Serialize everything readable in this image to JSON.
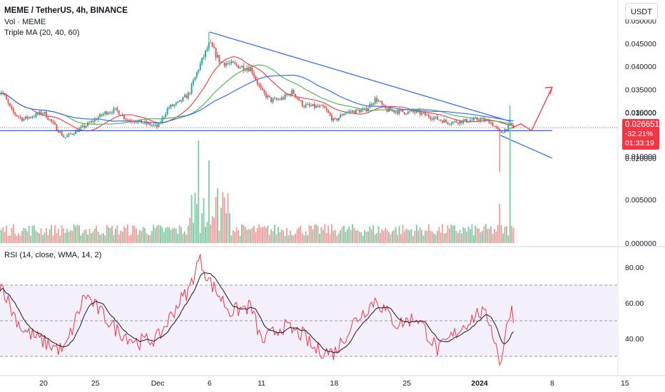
{
  "header": {
    "symbol_line": "MEME / TetherUS, 4h, BINANCE",
    "volume_line": "Vol · MEME",
    "ma_line": "Triple MA (20, 40, 60)",
    "currency": "USDT",
    "rsi_line": "RSI (14, close, WMA, 14, 2)"
  },
  "last_price": {
    "value": "0.026651",
    "change": "-32.21%",
    "countdown": "01:33:19"
  },
  "colors": {
    "up": "#26a69a",
    "down": "#ef5350",
    "vol_up": "#7ec9a2",
    "vol_down": "#f09a9a",
    "ma_fast": "#f23645",
    "ma_mid": "#4caf50",
    "ma_slow": "#2962ff",
    "trendline": "#2962ff",
    "projection": "#f23645",
    "rsi": "#f23645",
    "rsi_ma": "#131722",
    "rsi_band": "#f3effb"
  },
  "chart_data": [
    {
      "type": "candlestick",
      "title": "MEME / TetherUS, 4h, BINANCE",
      "x_ticks": [
        "20",
        "25",
        "Dec",
        "6",
        "11",
        "18",
        "25",
        "2024",
        "8",
        "15"
      ],
      "y_ticks": [
        "0.050000",
        "0.045000",
        "0.040000",
        "0.035000",
        "0.030000",
        "0.025000",
        "0.020000"
      ],
      "ylim": [
        0.016,
        0.051
      ],
      "anchors_close": [
        [
          "Nov 16",
          0.0345
        ],
        [
          "Nov 17",
          0.03
        ],
        [
          "Nov 18",
          0.0285
        ],
        [
          "Nov 20",
          0.03
        ],
        [
          "Nov 22",
          0.0245
        ],
        [
          "Nov 24",
          0.027
        ],
        [
          "Nov 26",
          0.03
        ],
        [
          "Nov 27",
          0.0305
        ],
        [
          "Nov 28",
          0.0285
        ],
        [
          "Nov 30",
          0.0275
        ],
        [
          "Dec 1",
          0.0268
        ],
        [
          "Dec 2",
          0.031
        ],
        [
          "Dec 3",
          0.032
        ],
        [
          "Dec 4",
          0.034
        ],
        [
          "Dec 5",
          0.04
        ],
        [
          "Dec 6",
          0.045
        ],
        [
          "Dec 7",
          0.041
        ],
        [
          "Dec 8",
          0.0405
        ],
        [
          "Dec 10",
          0.0395
        ],
        [
          "Dec 11",
          0.0345
        ],
        [
          "Dec 12",
          0.0325
        ],
        [
          "Dec 13",
          0.033
        ],
        [
          "Dec 14",
          0.0345
        ],
        [
          "Dec 15",
          0.0315
        ],
        [
          "Dec 17",
          0.031
        ],
        [
          "Dec 18",
          0.028
        ],
        [
          "Dec 19",
          0.03
        ],
        [
          "Dec 21",
          0.0305
        ],
        [
          "Dec 22",
          0.033
        ],
        [
          "Dec 23",
          0.0305
        ],
        [
          "Dec 25",
          0.03
        ],
        [
          "Dec 26",
          0.03
        ],
        [
          "Dec 28",
          0.0285
        ],
        [
          "Dec 29",
          0.0278
        ],
        [
          "Dec 31",
          0.0282
        ],
        [
          "Jan 1",
          0.0285
        ],
        [
          "Jan 2",
          0.028
        ],
        [
          "Jan 3",
          0.0255
        ],
        [
          "Jan 4",
          0.0272
        ],
        [
          "Jan 4b",
          0.0266
        ]
      ],
      "wick_extremes": {
        "high": 0.0475,
        "spike_high": 0.0315,
        "spike_low": 0.017
      },
      "resistance_line": {
        "from": [
          "Dec 6",
          0.0475
        ],
        "to": [
          "Jan 4",
          0.028
        ]
      },
      "support_line": {
        "level": 0.026,
        "from": "Nov 16",
        "to": "Jan 8"
      },
      "lower_line": {
        "from": [
          "Jan 3",
          0.025
        ],
        "to": [
          "Jan 8",
          0.02
        ]
      },
      "projection": [
        [
          "Jan 4",
          0.0265
        ],
        [
          "Jan 5",
          0.0275
        ],
        [
          "Jan 6",
          0.026
        ],
        [
          "Jan 8",
          0.0355
        ]
      ],
      "series": [
        {
          "name": "Triple MA 20"
        },
        {
          "name": "Triple MA 40"
        },
        {
          "name": "Triple MA 60"
        }
      ]
    },
    {
      "type": "bar",
      "title": "Vol · MEME",
      "y_ticks": [
        "0.015000",
        "0.010000",
        "0.005000",
        "0.000000"
      ],
      "ylim": [
        0,
        0.0162
      ],
      "notable_values": {
        "Dec 5": 0.0118,
        "Dec 6": 0.0095,
        "Jan 3": 0.0045,
        "Jan 4": 0.0133
      }
    },
    {
      "type": "line",
      "title": "RSI (14, close, WMA, 14, 2)",
      "y_ticks": [
        "80.00",
        "60.00",
        "40.00"
      ],
      "ylim": [
        23,
        90
      ],
      "bands": [
        70,
        50,
        30
      ],
      "rsi_anchors": [
        [
          "Nov 16",
          70
        ],
        [
          "Nov 17",
          55
        ],
        [
          "Nov 18",
          45
        ],
        [
          "Nov 20",
          38
        ],
        [
          "Nov 22",
          33
        ],
        [
          "Nov 24",
          65
        ],
        [
          "Nov 25",
          58
        ],
        [
          "Nov 27",
          45
        ],
        [
          "Nov 29",
          38
        ],
        [
          "Dec 1",
          40
        ],
        [
          "Dec 3",
          60
        ],
        [
          "Dec 4",
          67
        ],
        [
          "Dec 5",
          85
        ],
        [
          "Dec 6",
          72
        ],
        [
          "Dec 8",
          55
        ],
        [
          "Dec 10",
          58
        ],
        [
          "Dec 11",
          38
        ],
        [
          "Dec 13",
          47
        ],
        [
          "Dec 15",
          42
        ],
        [
          "Dec 16",
          34
        ],
        [
          "Dec 18",
          32
        ],
        [
          "Dec 20",
          50
        ],
        [
          "Dec 22",
          62
        ],
        [
          "Dec 24",
          48
        ],
        [
          "Dec 26",
          52
        ],
        [
          "Dec 28",
          33
        ],
        [
          "Dec 30",
          45
        ],
        [
          "Jan 1",
          55
        ],
        [
          "Jan 2",
          50
        ],
        [
          "Jan 3",
          26
        ],
        [
          "Jan 4",
          58
        ],
        [
          "Jan 4b",
          52
        ]
      ]
    }
  ]
}
